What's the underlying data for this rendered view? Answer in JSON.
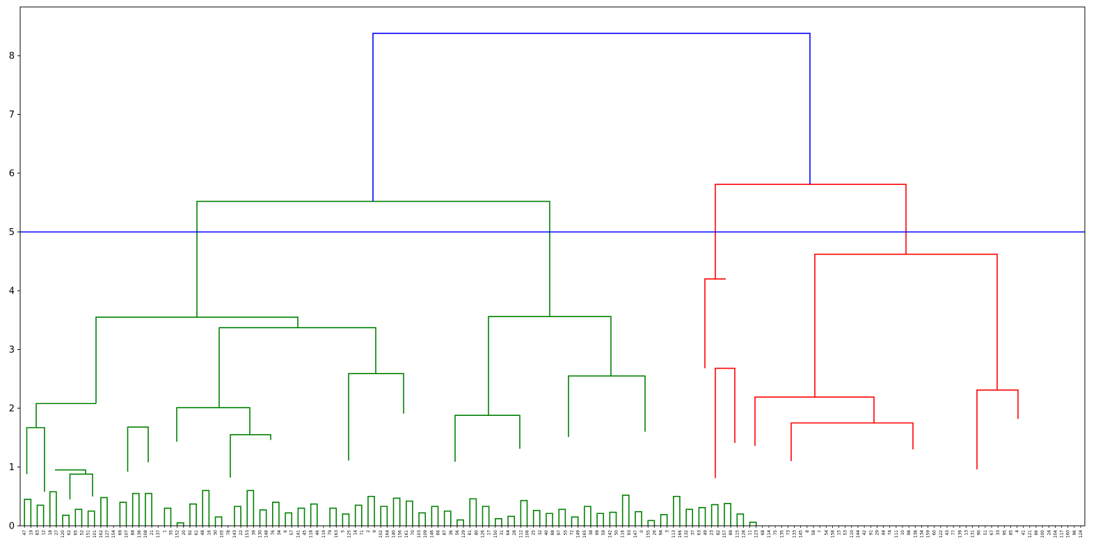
{
  "chart_data": {
    "type": "dendrogram",
    "title": "",
    "xlabel": "",
    "ylabel": "",
    "ylim": [
      0,
      8.8
    ],
    "yticks": [
      0,
      1,
      2,
      3,
      4,
      5,
      6,
      7,
      8
    ],
    "threshold_line": {
      "y": 5.0,
      "color": "#0000ff"
    },
    "colors": {
      "left_cluster": "#008000",
      "right_cluster": "#ff0000",
      "root": "#0000ff"
    },
    "leaves": [
      "47",
      "19",
      "83",
      "12",
      "18",
      "27",
      "120",
      "62",
      "65",
      "52",
      "151",
      "101",
      "162",
      "127",
      "154",
      "69",
      "107",
      "84",
      "136",
      "108",
      "21",
      "137",
      "1",
      "35",
      "152",
      "20",
      "92",
      "61",
      "48",
      "16",
      "30",
      "105",
      "78",
      "143",
      "22",
      "153",
      "39",
      "130",
      "148",
      "76",
      "34",
      "6",
      "57",
      "141",
      "45",
      "118",
      "46",
      "119",
      "79",
      "163",
      "5",
      "125",
      "14",
      "71",
      "2",
      "9",
      "102",
      "164",
      "140",
      "156",
      "161",
      "70",
      "103",
      "109",
      "146",
      "66",
      "87",
      "36",
      "56",
      "129",
      "81",
      "80",
      "126",
      "17",
      "150",
      "31",
      "64",
      "28",
      "112",
      "106",
      "25",
      "32",
      "40",
      "88",
      "97",
      "55",
      "72",
      "149",
      "165",
      "38",
      "99",
      "59",
      "142",
      "50",
      "116",
      "93",
      "147",
      "0",
      "155",
      "26",
      "94",
      "3",
      "113",
      "166",
      "132",
      "37",
      "63",
      "49",
      "23",
      "82",
      "157",
      "89",
      "115",
      "128",
      "11",
      "123",
      "68",
      "114",
      "75",
      "135",
      "73",
      "133",
      "145",
      "8",
      "58",
      "7",
      "54",
      "158",
      "15",
      "53",
      "110",
      "144",
      "42",
      "91",
      "29",
      "44",
      "74",
      "111",
      "10",
      "98",
      "138",
      "134",
      "159",
      "60",
      "122",
      "43",
      "77",
      "139",
      "13",
      "131",
      "90",
      "51",
      "67",
      "33",
      "95",
      "85",
      "4",
      "41",
      "121",
      "86",
      "100",
      "24",
      "104",
      "117",
      "160",
      "96",
      "124"
    ],
    "merges": [
      {
        "color": "#008000",
        "x": [
          0,
          1
        ],
        "h": 0.45
      },
      {
        "color": "#008000",
        "x": [
          2,
          3
        ],
        "h": 0.35
      },
      {
        "color": "#008000",
        "x": [
          4,
          5
        ],
        "h": 0.58
      },
      {
        "color": "#008000",
        "x": [
          6,
          7
        ],
        "h": 0.18
      },
      {
        "color": "#008000",
        "x": [
          8,
          9
        ],
        "h": 0.28
      },
      {
        "color": "#008000",
        "x": [
          10,
          11
        ],
        "h": 0.25
      },
      {
        "color": "#008000",
        "x": [
          12,
          13
        ],
        "h": 0.48
      },
      {
        "color": "#008000",
        "x": [
          15,
          16
        ],
        "h": 0.4
      },
      {
        "color": "#008000",
        "x": [
          17,
          18
        ],
        "h": 0.55
      },
      {
        "color": "#008000",
        "x": [
          19,
          20
        ],
        "h": 0.55
      },
      {
        "color": "#008000",
        "x": [
          22,
          23
        ],
        "h": 0.3
      },
      {
        "color": "#008000",
        "x": [
          24,
          25
        ],
        "h": 0.05
      },
      {
        "color": "#008000",
        "x": [
          26,
          27
        ],
        "h": 0.37
      },
      {
        "color": "#008000",
        "x": [
          28,
          29
        ],
        "h": 0.6
      },
      {
        "color": "#008000",
        "x": [
          30,
          31
        ],
        "h": 0.15
      },
      {
        "color": "#008000",
        "x": [
          33,
          34
        ],
        "h": 0.33
      },
      {
        "color": "#008000",
        "x": [
          35,
          36
        ],
        "h": 0.6
      },
      {
        "color": "#008000",
        "x": [
          37,
          38
        ],
        "h": 0.27
      },
      {
        "color": "#008000",
        "x": [
          39,
          40
        ],
        "h": 0.4
      },
      {
        "color": "#008000",
        "x": [
          41,
          42
        ],
        "h": 0.22
      },
      {
        "color": "#008000",
        "x": [
          43,
          44
        ],
        "h": 0.3
      },
      {
        "color": "#008000",
        "x": [
          45,
          46
        ],
        "h": 0.37
      },
      {
        "color": "#008000",
        "x": [
          48,
          49
        ],
        "h": 0.3
      },
      {
        "color": "#008000",
        "x": [
          50,
          51
        ],
        "h": 0.2
      },
      {
        "color": "#008000",
        "x": [
          52,
          53
        ],
        "h": 0.35
      },
      {
        "color": "#008000",
        "x": [
          54,
          55
        ],
        "h": 0.5
      },
      {
        "color": "#008000",
        "x": [
          56,
          57
        ],
        "h": 0.33
      },
      {
        "color": "#008000",
        "x": [
          58,
          59
        ],
        "h": 0.47
      },
      {
        "color": "#008000",
        "x": [
          60,
          61
        ],
        "h": 0.42
      },
      {
        "color": "#008000",
        "x": [
          62,
          63
        ],
        "h": 0.22
      },
      {
        "color": "#008000",
        "x": [
          64,
          65
        ],
        "h": 0.33
      },
      {
        "color": "#008000",
        "x": [
          66,
          67
        ],
        "h": 0.25
      },
      {
        "color": "#008000",
        "x": [
          68,
          69
        ],
        "h": 0.1
      },
      {
        "color": "#008000",
        "x": [
          70,
          71
        ],
        "h": 0.46
      },
      {
        "color": "#008000",
        "x": [
          72,
          73
        ],
        "h": 0.33
      },
      {
        "color": "#008000",
        "x": [
          74,
          75
        ],
        "h": 0.12
      },
      {
        "color": "#008000",
        "x": [
          76,
          77
        ],
        "h": 0.16
      },
      {
        "color": "#008000",
        "x": [
          78,
          79
        ],
        "h": 0.43
      },
      {
        "color": "#008000",
        "x": [
          80,
          81
        ],
        "h": 0.26
      },
      {
        "color": "#008000",
        "x": [
          82,
          83
        ],
        "h": 0.21
      },
      {
        "color": "#008000",
        "x": [
          84,
          85
        ],
        "h": 0.28
      },
      {
        "color": "#008000",
        "x": [
          86,
          87
        ],
        "h": 0.15
      },
      {
        "color": "#008000",
        "x": [
          88,
          89
        ],
        "h": 0.33
      },
      {
        "color": "#008000",
        "x": [
          90,
          91
        ],
        "h": 0.21
      },
      {
        "color": "#008000",
        "x": [
          92,
          93
        ],
        "h": 0.23
      },
      {
        "color": "#008000",
        "x": [
          94,
          95
        ],
        "h": 0.52
      },
      {
        "color": "#008000",
        "x": [
          96,
          97
        ],
        "h": 0.24
      },
      {
        "color": "#008000",
        "x": [
          98,
          99
        ],
        "h": 0.09
      },
      {
        "color": "#008000",
        "x": [
          100,
          101
        ],
        "h": 0.19
      },
      {
        "color": "#008000",
        "x": [
          102,
          103
        ],
        "h": 0.5
      },
      {
        "color": "#008000",
        "x": [
          104,
          105
        ],
        "h": 0.28
      },
      {
        "color": "#008000",
        "x": [
          106,
          107
        ],
        "h": 0.31
      },
      {
        "color": "#008000",
        "x": [
          108,
          109
        ],
        "h": 0.36
      },
      {
        "color": "#008000",
        "x": [
          110,
          111
        ],
        "h": 0.38
      },
      {
        "color": "#008000",
        "x": [
          112,
          113
        ],
        "h": 0.2
      },
      {
        "color": "#008000",
        "x": [
          114,
          115
        ],
        "h": 0.06
      }
    ]
  }
}
